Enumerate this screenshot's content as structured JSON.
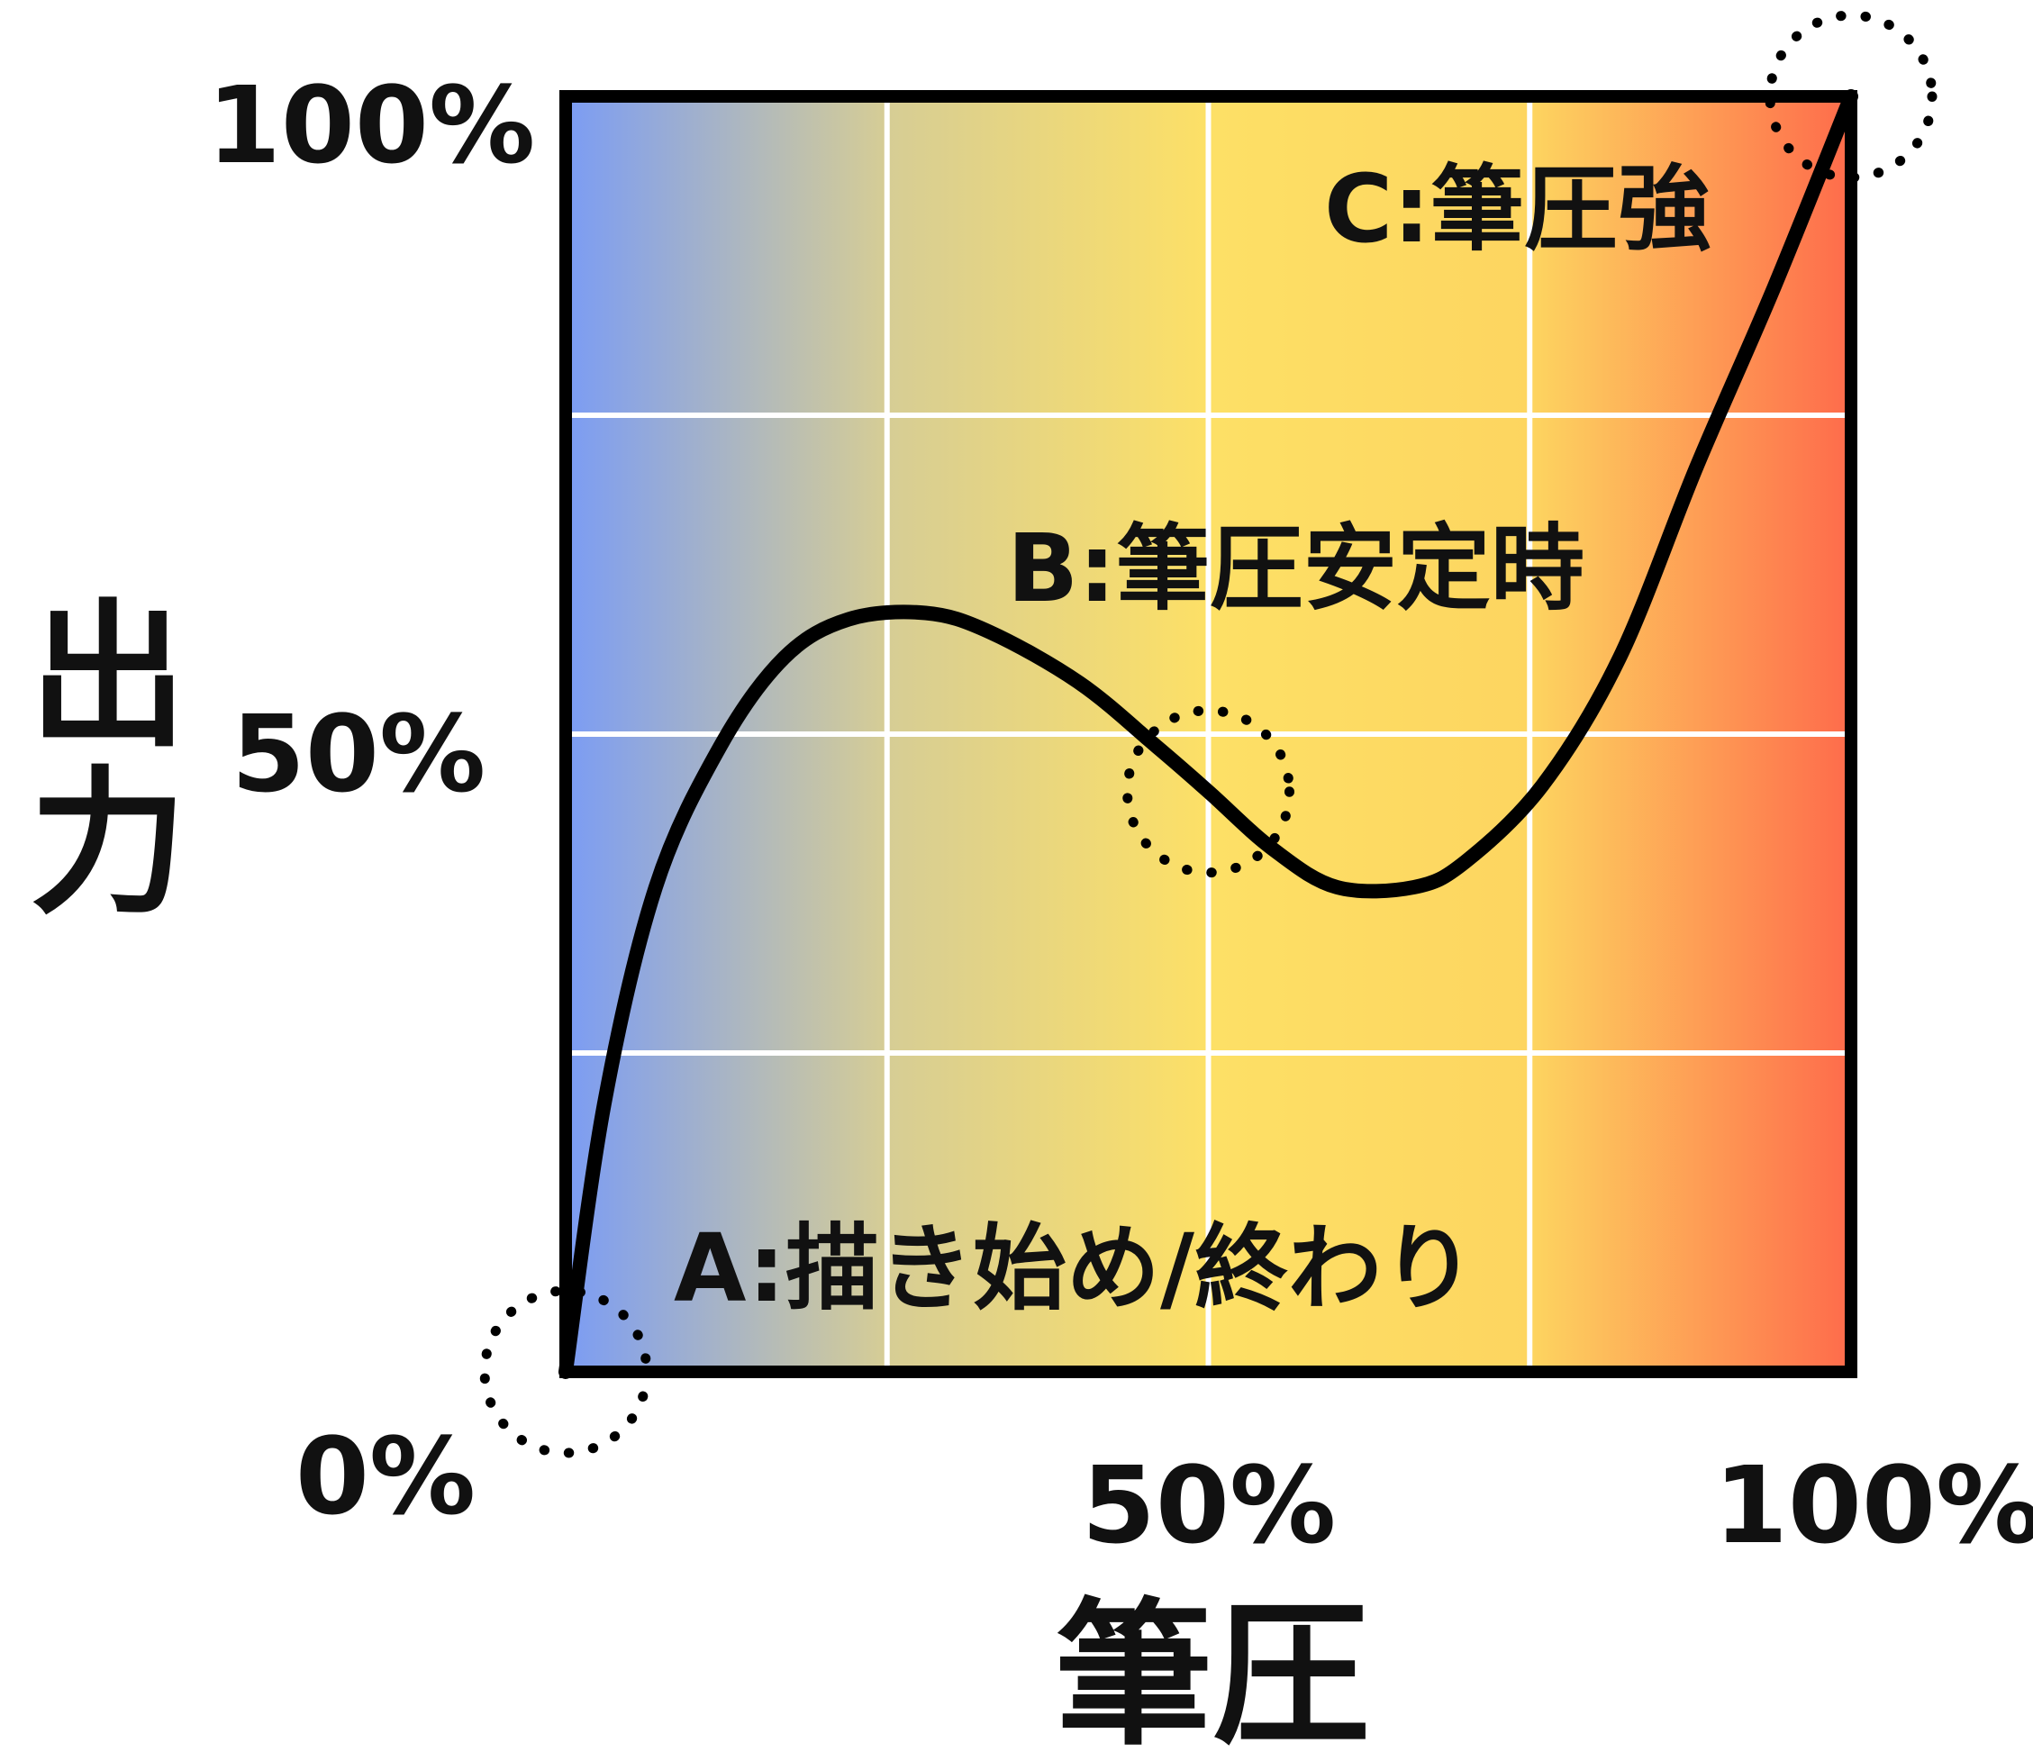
{
  "chart_data": {
    "type": "line",
    "xlabel": "筆圧",
    "ylabel": "出力",
    "xlim": [
      0,
      100
    ],
    "ylim": [
      0,
      100
    ],
    "x_unit": "%",
    "y_unit": "%",
    "grid": true,
    "background_gradient": [
      "#7b9cf4",
      "#d6cd95",
      "#fde066",
      "#fdd560",
      "#fe6b4b"
    ],
    "x_tick_labels": [
      {
        "value": 0,
        "label": "0%"
      },
      {
        "value": 50,
        "label": "50%"
      },
      {
        "value": 100,
        "label": "100%"
      }
    ],
    "y_tick_labels": [
      {
        "value": 100,
        "label": "100%"
      },
      {
        "value": 50,
        "label": "50%"
      }
    ],
    "series": [
      {
        "color": "#000000",
        "x": [
          0,
          3,
          7,
          12,
          17,
          22,
          28,
          33,
          40,
          46,
          50,
          55,
          60,
          66,
          70,
          76,
          82,
          88,
          94,
          100
        ],
        "y": [
          0,
          21,
          38,
          49,
          56,
          59,
          59.5,
          58,
          54,
          49,
          45.5,
          41,
          38,
          38,
          40,
          46,
          56,
          71,
          85,
          100
        ]
      }
    ],
    "annotations": [
      {
        "label": "A:描き始め/終わり",
        "x": 0,
        "y": 0
      },
      {
        "label": "B:筆圧安定時",
        "x": 50,
        "y": 45.5
      },
      {
        "label": "C:筆圧強",
        "x": 100,
        "y": 100
      }
    ]
  }
}
